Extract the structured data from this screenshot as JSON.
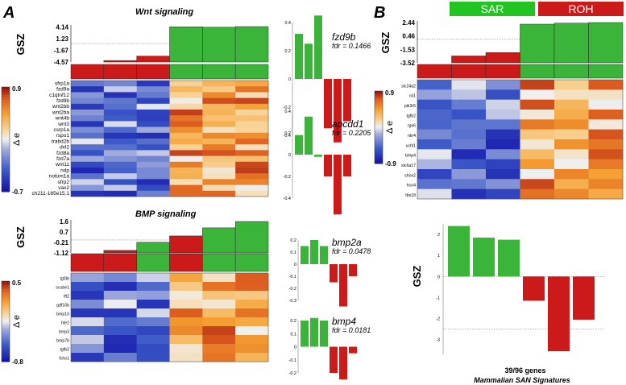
{
  "panel_a": {
    "letter": "A",
    "wnt": {
      "title": "Wnt signaling",
      "gsz_label": "GSZ",
      "gsz_ticks": [
        "4.14",
        "1.23",
        "-1.67",
        "-4.57"
      ],
      "gsz_values": [
        -4.57,
        -4.2,
        -3.1,
        4.14,
        4.04,
        4.2
      ],
      "genes": [
        "sfrp1a",
        "fzd9a",
        "c1qtnf12",
        "fzd9b",
        "wnt2bb",
        "wnt2ba",
        "wnt4b",
        "wnt3",
        "csrp1a",
        "rspo1",
        "trabd2b",
        "dvl2",
        "fzd8a",
        "fzd7a",
        "wnt11",
        "ndp",
        "notum1a",
        "sfrp2",
        "vax2",
        "ch211-165e15.1"
      ],
      "legend_max": "0.9",
      "legend_min": "-0.7",
      "legend_label": "Δ e"
    },
    "bmp": {
      "title": "BMP signaling",
      "gsz_label": "GSZ",
      "gsz_ticks": [
        "1.6",
        "0.7",
        "-0.21",
        "-1.12"
      ],
      "gsz_values": [
        -1.12,
        -0.9,
        -0.2,
        0.35,
        1.05,
        1.6
      ],
      "group_colors": [
        "#cc1a1a",
        "#cc1a1a",
        "#3ab53a",
        "#cc1a1a",
        "#3ab53a",
        "#3ab53a"
      ],
      "genes": [
        "tgf3b",
        "scube1",
        "lft2",
        "gdf10b",
        "bmp10",
        "hfe2",
        "bmp3",
        "bmp7b",
        "tgfb2",
        "fcho1"
      ],
      "legend_max": "0.5",
      "legend_min": "-0.8",
      "legend_label": "Δ e"
    },
    "gene_bars": [
      {
        "gene": "fzd9b",
        "fdr": "fdr = 0.1466",
        "ticks": [
          "0.4",
          "0.2",
          "0",
          "-0.2",
          "-0.4"
        ],
        "values": [
          0.32,
          0.25,
          0.45,
          -0.35,
          -0.45,
          -0.3
        ]
      },
      {
        "gene": "apcdd1",
        "fdr": "fdr = 0.2205",
        "ticks": [
          "0.4",
          "0.2",
          "0",
          "-0.2",
          "-0.4"
        ],
        "values": [
          0.18,
          0.35,
          -0.02,
          -0.2,
          -0.55,
          -0.2
        ]
      },
      {
        "gene": "bmp2a",
        "fdr": "fdr = 0.0478",
        "ticks": [
          "0.2",
          "0.1",
          "0",
          "-0.1",
          "-0.2",
          "-0.3"
        ],
        "values": [
          0.15,
          0.2,
          0.15,
          -0.15,
          -0.35,
          -0.1
        ]
      },
      {
        "gene": "bmp4",
        "fdr": "fdr = 0.0181",
        "ticks": [
          "0.2",
          "0.1",
          "0",
          "-0.1",
          "-0.2"
        ],
        "values": [
          0.2,
          0.22,
          0.2,
          -0.2,
          -0.25,
          -0.05
        ]
      }
    ]
  },
  "panel_b": {
    "letter": "B",
    "groups": [
      "SAR",
      "ROH"
    ],
    "gsz_label": "GSZ",
    "gsz_ticks": [
      "2.44",
      "0.46",
      "-1.53",
      "-3.52"
    ],
    "gsz_values": [
      -3.52,
      -2.5,
      -2.0,
      2.2,
      2.35,
      2.44
    ],
    "genes": [
      "slc24a2",
      "isl1",
      "pik3r5",
      "tgfb2",
      "rgs6",
      "ntn4",
      "uchl1",
      "bmp4",
      "slc6a17",
      "shox2",
      "hcn4",
      "tbx18"
    ],
    "legend_max": "0.9",
    "legend_min": "-0.9",
    "legend_label": "Δ e",
    "summary": {
      "gsz_label": "GSZ",
      "ticks": [
        "2",
        "1",
        "0",
        "-1",
        "-2",
        "-3"
      ],
      "values": [
        2.4,
        1.85,
        1.75,
        -1.15,
        -3.55,
        -2.05
      ],
      "threshold": -2.5,
      "caption_line1": "39/96 genes",
      "caption_line2": "Mammalian SAN Signatures"
    }
  },
  "colors": {
    "green": "#3ab53a",
    "red": "#cc1a1a"
  }
}
